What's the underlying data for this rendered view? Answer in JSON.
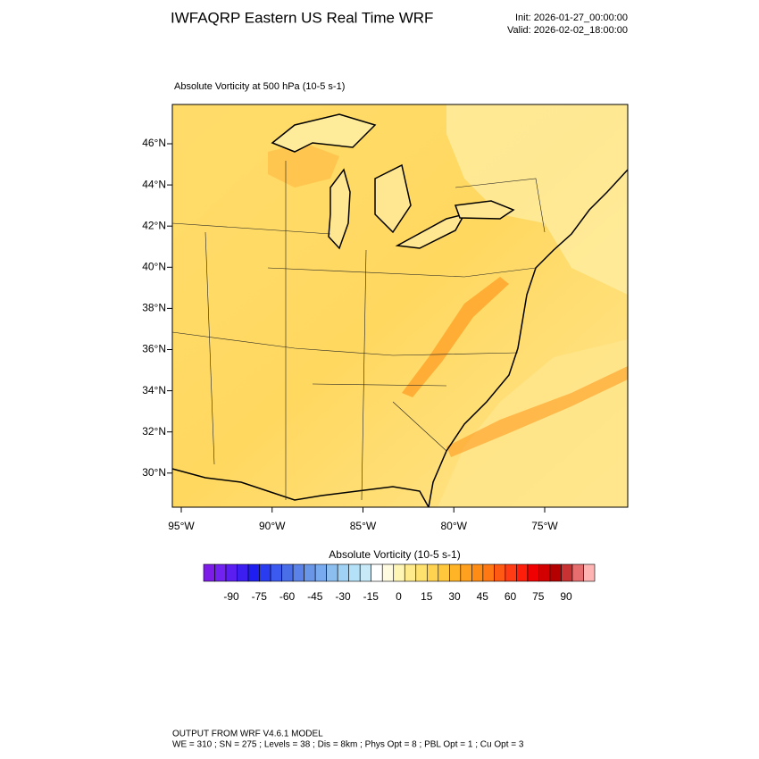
{
  "header": {
    "title": "IWFAQRP Eastern US Real Time WRF",
    "init": "Init: 2026-01-27_00:00:00",
    "valid": "Valid: 2026-02-02_18:00:00"
  },
  "map": {
    "field_label": "Absolute Vorticity at 500 hPa   (10-5 s-1)",
    "lon_labels": [
      "95°W",
      "90°W",
      "85°W",
      "80°W",
      "75°W"
    ],
    "lat_labels": [
      "46°N",
      "44°N",
      "42°N",
      "40°N",
      "38°N",
      "36°N",
      "34°N",
      "32°N",
      "30°N"
    ]
  },
  "colorbar": {
    "title": "Absolute Vorticity  (10-5 s-1)",
    "labels": [
      "-90",
      "-75",
      "-60",
      "-45",
      "-30",
      "-15",
      "0",
      "15",
      "30",
      "45",
      "60",
      "75",
      "90"
    ],
    "colors": [
      "#7d1ce8",
      "#7222f0",
      "#5a1ff0",
      "#3c1ef0",
      "#1e1ef0",
      "#2a3cf0",
      "#3c5af0",
      "#4a6ee8",
      "#5a82e8",
      "#6a96e8",
      "#78aaf0",
      "#8cbef0",
      "#a0d2f5",
      "#b4e1f8",
      "#c8eaf8",
      "#ffffff",
      "#fffbe0",
      "#fff5b4",
      "#ffeb8c",
      "#ffe16e",
      "#ffd250",
      "#ffc83c",
      "#ffb428",
      "#ffa01e",
      "#ff8c14",
      "#ff7814",
      "#ff5a14",
      "#ff3c14",
      "#ff1e0a",
      "#f00000",
      "#d20000",
      "#b40000",
      "#c83232",
      "#e66e6e",
      "#ffb4b4"
    ]
  },
  "footer": {
    "line1": "OUTPUT FROM WRF V4.6.1 MODEL",
    "line2": "WE = 310 ; SN = 275 ; Levels = 38 ; Dis = 8km ; Phys Opt = 8 ; PBL Opt = 1 ; Cu Opt = 3"
  }
}
